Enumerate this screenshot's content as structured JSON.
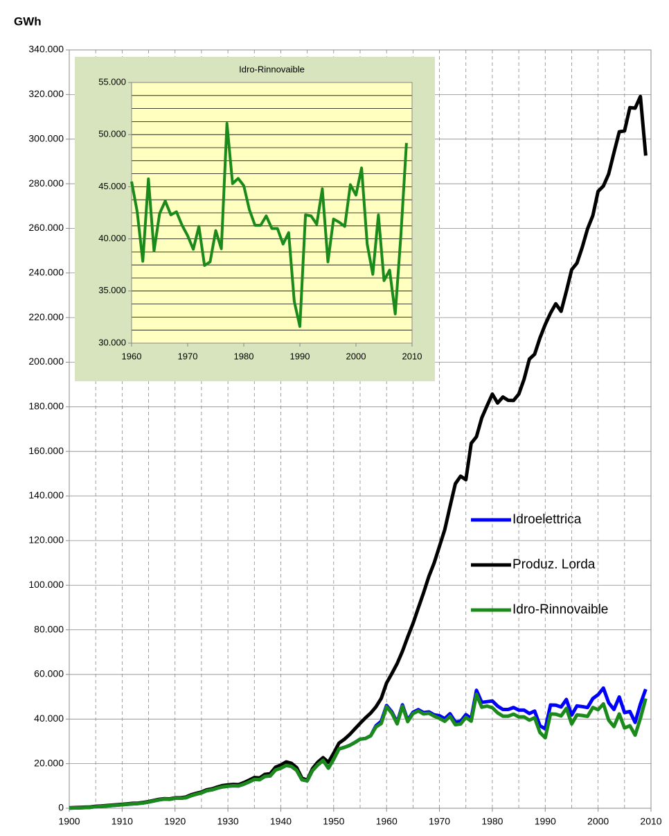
{
  "chart_data": [
    {
      "type": "line",
      "y_label": "GWh",
      "x": [
        1900,
        1901,
        1902,
        1903,
        1904,
        1905,
        1906,
        1907,
        1908,
        1909,
        1910,
        1911,
        1912,
        1913,
        1914,
        1915,
        1916,
        1917,
        1918,
        1919,
        1920,
        1921,
        1922,
        1923,
        1924,
        1925,
        1926,
        1927,
        1928,
        1929,
        1930,
        1931,
        1932,
        1933,
        1934,
        1935,
        1936,
        1937,
        1938,
        1939,
        1940,
        1941,
        1942,
        1943,
        1944,
        1945,
        1946,
        1947,
        1948,
        1949,
        1950,
        1951,
        1952,
        1953,
        1954,
        1955,
        1956,
        1957,
        1958,
        1959,
        1960,
        1961,
        1962,
        1963,
        1964,
        1965,
        1966,
        1967,
        1968,
        1969,
        1970,
        1971,
        1972,
        1973,
        1974,
        1975,
        1976,
        1977,
        1978,
        1979,
        1980,
        1981,
        1982,
        1983,
        1984,
        1985,
        1986,
        1987,
        1988,
        1989,
        1990,
        1991,
        1992,
        1993,
        1994,
        1995,
        1996,
        1997,
        1998,
        1999,
        2000,
        2001,
        2002,
        2003,
        2004,
        2005,
        2006,
        2007,
        2008,
        2009
      ],
      "series": [
        {
          "name": "Idroelettrica",
          "color": "#0000ff",
          "values": [
            100,
            150,
            200,
            300,
            400,
            700,
            800,
            1000,
            1200,
            1400,
            1600,
            1800,
            2000,
            2100,
            2400,
            2800,
            3300,
            3800,
            4100,
            4000,
            4500,
            4500,
            4700,
            5600,
            6300,
            6900,
            7900,
            8300,
            9000,
            9600,
            9900,
            10100,
            10000,
            10800,
            11800,
            13000,
            12800,
            14300,
            14500,
            17200,
            18000,
            19200,
            18800,
            17000,
            12800,
            12300,
            17000,
            19500,
            21500,
            18000,
            22000,
            26600,
            27300,
            28200,
            29500,
            31000,
            31300,
            32500,
            37000,
            39000,
            46100,
            43200,
            38450,
            46360,
            39440,
            43040,
            44230,
            42900,
            43200,
            41900,
            41500,
            40200,
            42400,
            38650,
            39000,
            42000,
            40250,
            52900,
            47500,
            47800,
            48100,
            45800,
            44300,
            44300,
            45200,
            44000,
            44000,
            42500,
            43600,
            37000,
            35600,
            46300,
            46200,
            45400,
            48800,
            41800,
            45900,
            45600,
            45200,
            49200,
            50900,
            53900,
            47300,
            44300,
            49900,
            42900,
            43400,
            38500,
            46700,
            53400
          ]
        },
        {
          "name": "Produz. Lorda",
          "color": "#000000",
          "values": [
            200,
            300,
            400,
            500,
            600,
            900,
            1000,
            1200,
            1400,
            1600,
            1800,
            2000,
            2200,
            2300,
            2600,
            3000,
            3500,
            4000,
            4300,
            4200,
            4700,
            4700,
            5000,
            6000,
            6700,
            7300,
            8300,
            8700,
            9500,
            10200,
            10500,
            10700,
            10600,
            11500,
            12600,
            13800,
            13600,
            15200,
            15500,
            18400,
            19400,
            20800,
            20200,
            18200,
            13500,
            12600,
            17800,
            20700,
            22700,
            20600,
            24700,
            29200,
            30900,
            33000,
            35600,
            38100,
            40500,
            42700,
            45500,
            49300,
            56200,
            60400,
            64900,
            70400,
            76800,
            82900,
            89800,
            96600,
            104000,
            110000,
            117400,
            124900,
            135300,
            145500,
            148900,
            147300,
            163600,
            166600,
            175000,
            180500,
            185700,
            181700,
            184400,
            182900,
            182800,
            185700,
            192300,
            201400,
            203600,
            210800,
            216900,
            222000,
            226200,
            222800,
            231800,
            241500,
            244400,
            251500,
            259800,
            265700,
            276600,
            279000,
            284400,
            293900,
            303300,
            303700,
            314100,
            313900,
            319100,
            292600
          ]
        },
        {
          "name": "Idro-Rinnovaible",
          "color": "#1a8a1a",
          "values": [
            100,
            150,
            200,
            300,
            400,
            700,
            800,
            1000,
            1200,
            1400,
            1600,
            1800,
            2000,
            2100,
            2400,
            2800,
            3300,
            3800,
            4100,
            4000,
            4500,
            4500,
            4700,
            5600,
            6300,
            6900,
            7900,
            8300,
            9000,
            9600,
            9900,
            10100,
            10000,
            10800,
            11800,
            13000,
            12800,
            14300,
            14500,
            17200,
            18000,
            19200,
            18800,
            17000,
            12800,
            12300,
            17000,
            19500,
            21500,
            18000,
            22000,
            26600,
            27300,
            28200,
            29500,
            31000,
            31300,
            32500,
            36500,
            38000,
            45500,
            42600,
            37850,
            45760,
            38840,
            42440,
            43630,
            42300,
            42600,
            41300,
            40300,
            39000,
            41200,
            37450,
            37800,
            40800,
            39050,
            51080,
            45300,
            45800,
            45100,
            42800,
            41300,
            41300,
            42200,
            41000,
            41000,
            39500,
            40600,
            34000,
            31600,
            42300,
            42200,
            41400,
            44800,
            37800,
            41900,
            41600,
            41200,
            45200,
            44200,
            46800,
            39500,
            36600,
            42300,
            36000,
            37000,
            32800,
            40300,
            49200
          ]
        }
      ],
      "xlim": [
        1900,
        2010
      ],
      "xticks": [
        1900,
        1910,
        1920,
        1930,
        1940,
        1950,
        1960,
        1970,
        1980,
        1990,
        2000,
        2010
      ],
      "xminorticks": [
        1905,
        1915,
        1925,
        1935,
        1945,
        1955,
        1965,
        1975,
        1985,
        1995,
        2005
      ],
      "ylim": [
        0,
        340000
      ],
      "yticks": [
        0,
        {
          "value": 20000,
          "label": "20.000"
        },
        {
          "value": 40000,
          "label": "40.000"
        },
        {
          "value": 60000,
          "label": "60.000"
        },
        {
          "value": 80000,
          "label": "80.000"
        },
        {
          "value": 100000,
          "label": "100.000"
        },
        {
          "value": 120000,
          "label": "120.000"
        },
        {
          "value": 140000,
          "label": "140.000"
        },
        {
          "value": 160000,
          "label": "160.000"
        },
        {
          "value": 180000,
          "label": "180.000"
        },
        {
          "value": 200000,
          "label": "200.000"
        },
        {
          "value": 220000,
          "label": "220.000"
        },
        {
          "value": 240000,
          "label": "240.000"
        },
        {
          "value": 260000,
          "label": "260.000"
        },
        {
          "value": 280000,
          "label": "280.000"
        },
        {
          "value": 300000,
          "label": "300.000"
        },
        {
          "value": 320000,
          "label": "320.000"
        },
        {
          "value": 340000,
          "label": "340.000"
        }
      ],
      "grid": true,
      "legend": "center-right"
    },
    {
      "type": "line",
      "title": "Idro-Rinnovaible",
      "x": [
        1960,
        1961,
        1962,
        1963,
        1964,
        1965,
        1966,
        1967,
        1968,
        1969,
        1970,
        1971,
        1972,
        1973,
        1974,
        1975,
        1976,
        1977,
        1978,
        1979,
        1980,
        1981,
        1982,
        1983,
        1984,
        1985,
        1986,
        1987,
        1988,
        1989,
        1990,
        1991,
        1992,
        1993,
        1994,
        1995,
        1996,
        1997,
        1998,
        1999,
        2000,
        2001,
        2002,
        2003,
        2004,
        2005,
        2006,
        2007,
        2008,
        2009
      ],
      "series": [
        {
          "color": "#1a8a1a",
          "values": [
            45500,
            42600,
            37850,
            45760,
            38840,
            42440,
            43630,
            42300,
            42600,
            41300,
            40300,
            39000,
            41200,
            37450,
            37800,
            40800,
            39050,
            51080,
            45300,
            45800,
            45100,
            42800,
            41300,
            41300,
            42200,
            41000,
            41000,
            39500,
            40600,
            34000,
            31600,
            42300,
            42200,
            41400,
            44800,
            37800,
            41900,
            41600,
            41200,
            45200,
            44200,
            46800,
            39500,
            36600,
            42300,
            36000,
            37000,
            32800,
            40300,
            49200
          ]
        }
      ],
      "xlim": [
        1960,
        2010
      ],
      "xticks": [
        1960,
        1970,
        1980,
        1990,
        2000,
        2010
      ],
      "ylim": [
        30000,
        55000
      ],
      "yticks": [
        {
          "value": 30000,
          "label": "30.000"
        },
        {
          "value": 35000,
          "label": "35.000"
        },
        {
          "value": 40000,
          "label": "40.000"
        },
        {
          "value": 45000,
          "label": "45.000"
        },
        {
          "value": 50000,
          "label": "50.000"
        },
        {
          "value": 55000,
          "label": "55.000"
        }
      ],
      "yminorticks": [
        31250,
        32500,
        33750,
        36250,
        37500,
        38750,
        41250,
        42500,
        43750,
        46250,
        47500,
        48750,
        51250,
        52500,
        53750
      ],
      "grid": true
    }
  ]
}
